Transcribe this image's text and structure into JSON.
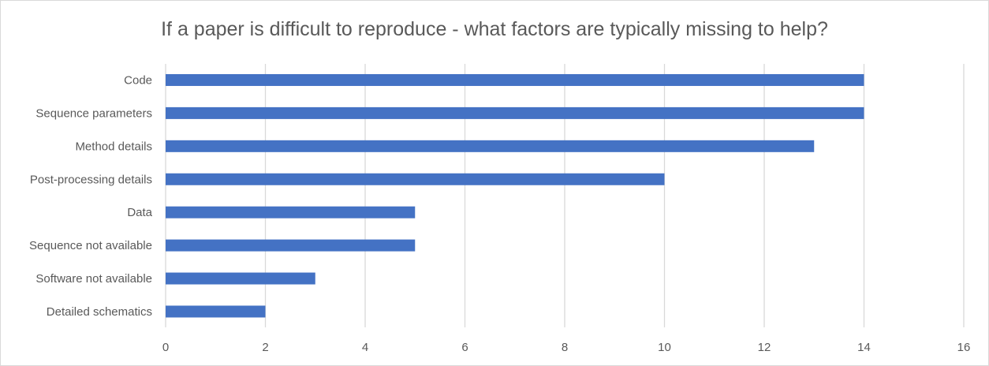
{
  "chart_data": {
    "type": "bar",
    "orientation": "horizontal",
    "title": "If a paper is difficult to reproduce - what factors are typically missing to help?",
    "xlabel": "",
    "ylabel": "",
    "categories": [
      "Code",
      "Sequence parameters",
      "Method details",
      "Post-processing details",
      "Data",
      "Sequence not available",
      "Software not available",
      "Detailed schematics"
    ],
    "values": [
      14,
      14,
      13,
      10,
      5,
      5,
      3,
      2
    ],
    "xlim": [
      0,
      16
    ],
    "xticks": [
      0,
      2,
      4,
      6,
      8,
      10,
      12,
      14,
      16
    ],
    "grid": true,
    "legend": "none",
    "bar_color": "#4472C4",
    "grid_color": "#d9d9d9"
  }
}
